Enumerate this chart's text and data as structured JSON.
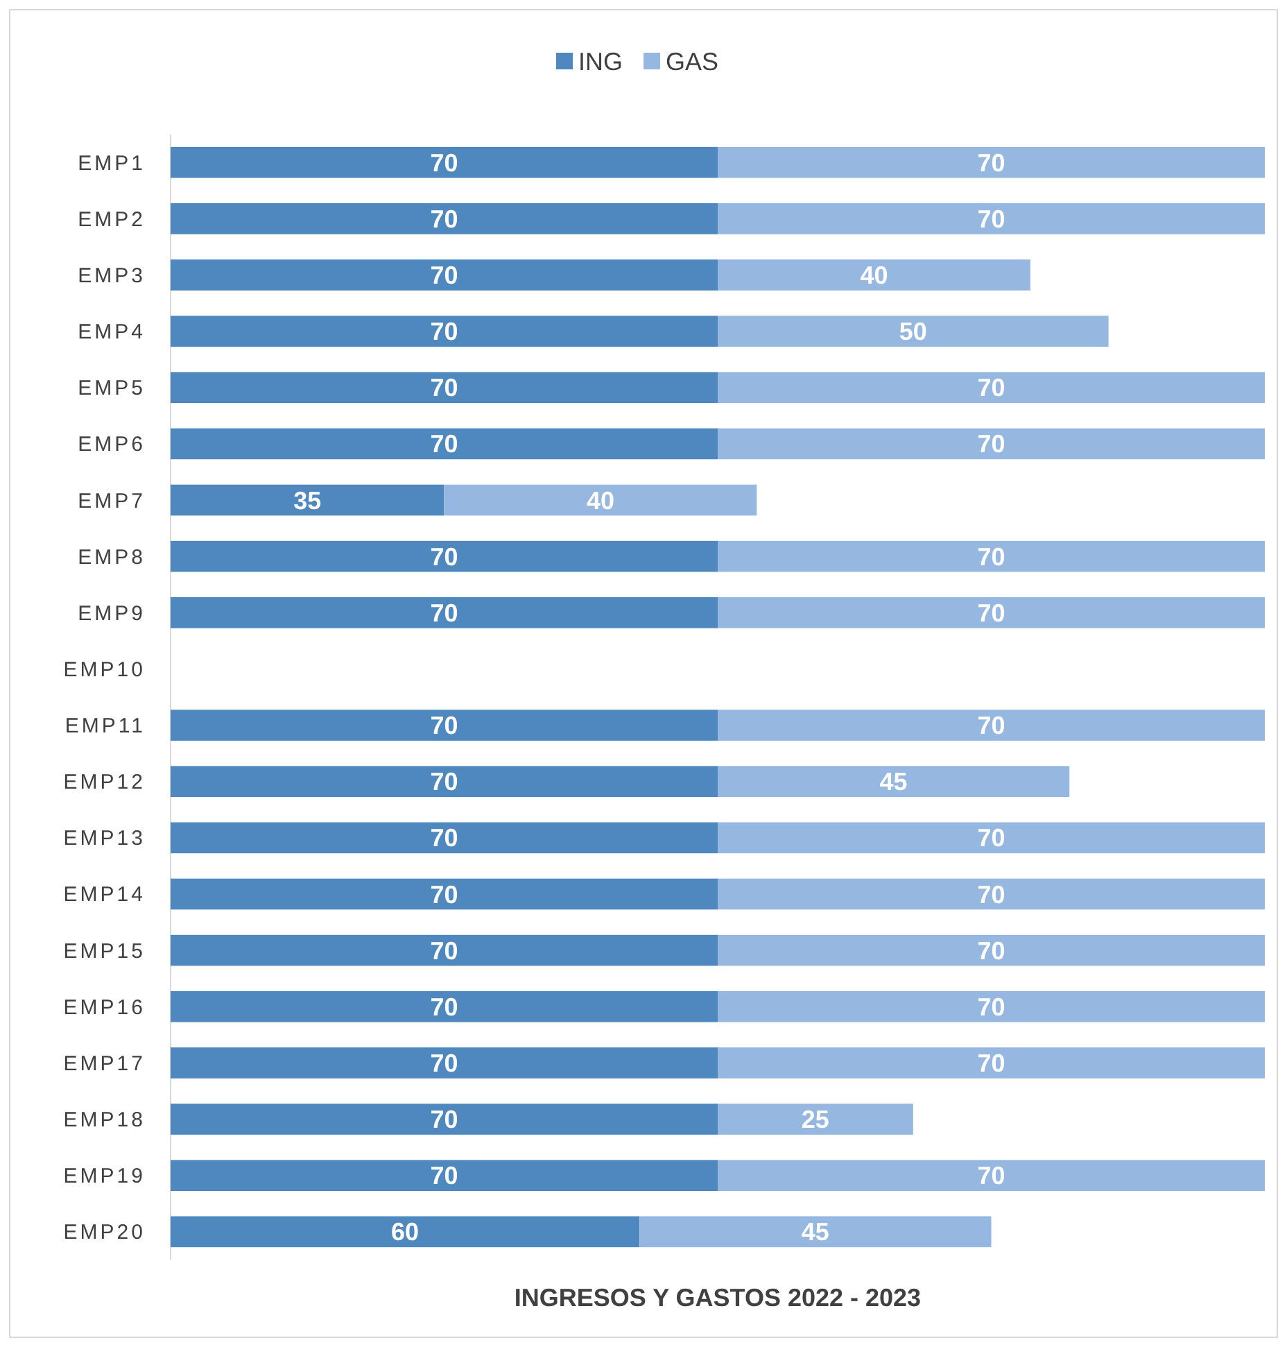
{
  "chart_data": {
    "type": "bar",
    "orientation": "horizontal",
    "stacked": true,
    "title": "INGRESOS Y GASTOS 2022 - 2023",
    "legend": "top",
    "categories": [
      "EMP1",
      "EMP2",
      "EMP3",
      "EMP4",
      "EMP5",
      "EMP6",
      "EMP7",
      "EMP8",
      "EMP9",
      "EMP10",
      "EMP11",
      "EMP12",
      "EMP13",
      "EMP14",
      "EMP15",
      "EMP16",
      "EMP17",
      "EMP18",
      "EMP19",
      "EMP20"
    ],
    "series": [
      {
        "name": "ING",
        "color": "#4f88bf",
        "values": [
          70,
          70,
          70,
          70,
          70,
          70,
          35,
          70,
          70,
          null,
          70,
          70,
          70,
          70,
          70,
          70,
          70,
          70,
          70,
          60
        ]
      },
      {
        "name": "GAS",
        "color": "#96b8e0",
        "values": [
          70,
          70,
          40,
          50,
          70,
          70,
          40,
          70,
          70,
          null,
          70,
          45,
          70,
          70,
          70,
          70,
          70,
          25,
          70,
          45
        ]
      }
    ],
    "data_labels": true
  }
}
